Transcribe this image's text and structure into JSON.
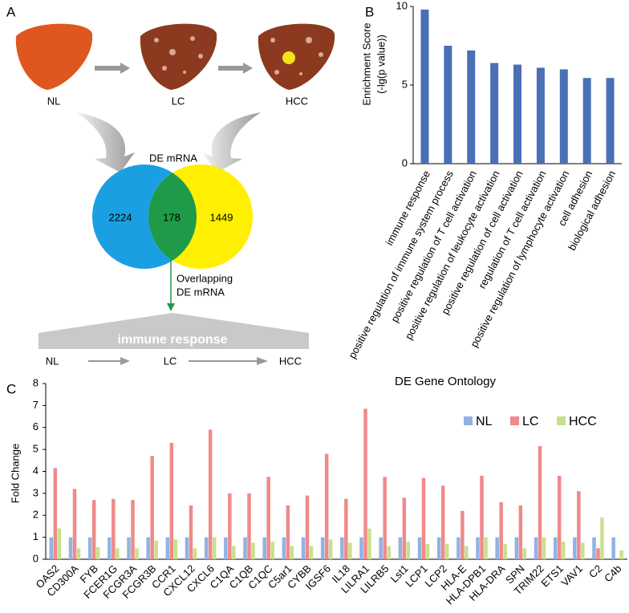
{
  "panel_labels": [
    "A",
    "B",
    "C"
  ],
  "diagram": {
    "stages": [
      "NL",
      "LC",
      "HCC"
    ],
    "venn_title": "DE mRNA",
    "venn_left": "2224",
    "venn_overlap": "178",
    "venn_right": "1449",
    "overlap_note": [
      "Overlapping",
      "DE mRNA"
    ],
    "banner": "immune response",
    "bottom_stages": [
      "NL",
      "LC",
      "HCC"
    ]
  },
  "chart_data": [
    {
      "type": "bar",
      "x_label": "DE Gene Ontology",
      "y_label": [
        "Enrichment Score",
        "(-lg(p value))"
      ],
      "categories": [
        "immune response",
        "positive regulation of immune system process",
        "positive regulation of T cell activation",
        "positive regulation of leukocyte activation",
        "positive regulation of cell activation",
        "regulation of T cell activation",
        "positive regulation of lymphocyte activation",
        "cell adhesion",
        "biological adhesion"
      ],
      "values": [
        9.8,
        7.5,
        7.2,
        6.4,
        6.3,
        6.1,
        6.0,
        5.45,
        5.45
      ],
      "color": "#4a6fb5",
      "category_colors": [
        "#5b7fb8",
        "#5b7fb8",
        "#5b7fb8",
        "#5b7fb8",
        "#000000",
        "#5b7fb8",
        "#5b7fb8",
        "#000000",
        "#000000"
      ],
      "ylim": [
        0,
        10
      ],
      "yticks": [
        0,
        5,
        10
      ]
    },
    {
      "type": "grouped_bar",
      "y_label": "Fold Change",
      "categories": [
        "OAS2",
        "CD300A",
        "FYB",
        "FCER1G",
        "FCGR3A",
        "FCGR3B",
        "CCR1",
        "CXCL12",
        "CXCL6",
        "C1QA",
        "C1QB",
        "C1QC",
        "C5ar1",
        "CYBB",
        "IGSF6",
        "IL18",
        "LILRA1",
        "LILRB5",
        "Lst1",
        "LCP1",
        "LCP2",
        "HLA-E",
        "HLA-DPB1",
        "HLA-DRA",
        "SPN",
        "TRIM22",
        "ETS1",
        "VAV1",
        "C2",
        "C4b"
      ],
      "series": [
        {
          "name": "NL",
          "color": "#92b2e2",
          "values": [
            1,
            1,
            1,
            1,
            1,
            1,
            1,
            1,
            1,
            1,
            1,
            1,
            1,
            1,
            1,
            1,
            1,
            1,
            1,
            1,
            1,
            1,
            1,
            1,
            1,
            1,
            1,
            1,
            1,
            1
          ]
        },
        {
          "name": "LC",
          "color": "#ef8a8a",
          "values": [
            4.15,
            3.2,
            2.7,
            2.75,
            2.7,
            4.7,
            5.3,
            2.45,
            5.9,
            3.0,
            3.0,
            3.75,
            2.45,
            2.9,
            4.8,
            2.75,
            6.85,
            3.75,
            2.8,
            3.7,
            3.35,
            2.2,
            3.8,
            2.6,
            2.45,
            5.15,
            3.8,
            3.1,
            0.5,
            null
          ]
        },
        {
          "name": "HCC",
          "color": "#c8e08e",
          "values": [
            1.4,
            0.5,
            0.55,
            0.5,
            0.5,
            0.85,
            0.9,
            0.5,
            1.0,
            0.6,
            0.75,
            0.8,
            0.6,
            0.6,
            0.9,
            0.75,
            1.4,
            0.6,
            0.8,
            0.7,
            0.7,
            0.6,
            1.0,
            0.7,
            0.5,
            1.0,
            0.8,
            0.75,
            1.9,
            0.4
          ]
        }
      ],
      "ylim": [
        0,
        8
      ],
      "yticks": [
        0,
        1,
        2,
        3,
        4,
        5,
        6,
        7,
        8
      ],
      "legend": "top-right"
    }
  ]
}
